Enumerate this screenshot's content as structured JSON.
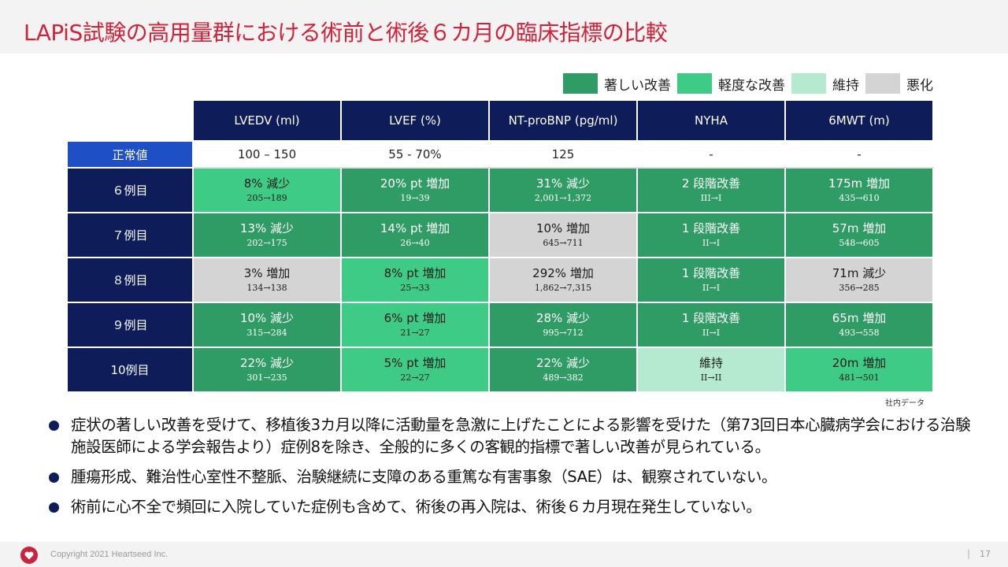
{
  "title": "LAPiS試験の高用量群における術前と術後６カ月の臨床指標の比較",
  "colors": {
    "title": "#d0233a",
    "navy": "#0e1d5a",
    "normal_label": "#1f4fc4",
    "significant": "#2e9c64",
    "mild": "#3ecb86",
    "maintained": "#b5ead0",
    "worsened": "#d4d4d4"
  },
  "legend": [
    {
      "label": "著しい改善",
      "color": "#2e9c64"
    },
    {
      "label": "軽度な改善",
      "color": "#3ecb86"
    },
    {
      "label": "維持",
      "color": "#b5ead0"
    },
    {
      "label": "悪化",
      "color": "#d4d4d4"
    }
  ],
  "table": {
    "columns": [
      "LVEDV (ml)",
      "LVEF (%)",
      "NT-proBNP (pg/ml)",
      "NYHA",
      "6MWT (m)"
    ],
    "normal": {
      "label": "正常値",
      "values": [
        "100 – 150",
        "55 - 70%",
        "125",
        "-",
        "-"
      ]
    },
    "rows": [
      {
        "label": "６例目",
        "cells": [
          {
            "main": "8% 減少",
            "sub": "205→189",
            "status": "mild"
          },
          {
            "main": "20% pt 増加",
            "sub": "19→39",
            "status": "significant"
          },
          {
            "main": "31% 減少",
            "sub": "2,001→1,372",
            "status": "significant"
          },
          {
            "main": "2 段階改善",
            "sub": "III→I",
            "status": "significant"
          },
          {
            "main": "175m 増加",
            "sub": "435→610",
            "status": "significant"
          }
        ]
      },
      {
        "label": "７例目",
        "cells": [
          {
            "main": "13% 減少",
            "sub": "202→175",
            "status": "significant"
          },
          {
            "main": "14% pt 増加",
            "sub": "26→40",
            "status": "significant"
          },
          {
            "main": "10% 増加",
            "sub": "645→711",
            "status": "worsened"
          },
          {
            "main": "1 段階改善",
            "sub": "II→I",
            "status": "significant"
          },
          {
            "main": "57m 増加",
            "sub": "548→605",
            "status": "significant"
          }
        ]
      },
      {
        "label": "８例目",
        "cells": [
          {
            "main": "3% 増加",
            "sub": "134→138",
            "status": "worsened"
          },
          {
            "main": "8% pt 増加",
            "sub": "25→33",
            "status": "mild"
          },
          {
            "main": "292% 増加",
            "sub": "1,862→7,315",
            "status": "worsened"
          },
          {
            "main": "1 段階改善",
            "sub": "II→I",
            "status": "significant"
          },
          {
            "main": "71m 減少",
            "sub": "356→285",
            "status": "worsened"
          }
        ]
      },
      {
        "label": "９例目",
        "cells": [
          {
            "main": "10% 減少",
            "sub": "315→284",
            "status": "significant"
          },
          {
            "main": "6% pt 増加",
            "sub": "21→27",
            "status": "mild"
          },
          {
            "main": "28% 減少",
            "sub": "995→712",
            "status": "significant"
          },
          {
            "main": "1 段階改善",
            "sub": "II→I",
            "status": "significant"
          },
          {
            "main": "65m 増加",
            "sub": "493→558",
            "status": "significant"
          }
        ]
      },
      {
        "label": "10例目",
        "cells": [
          {
            "main": "22% 減少",
            "sub": "301→235",
            "status": "significant"
          },
          {
            "main": "5% pt 増加",
            "sub": "22→27",
            "status": "mild"
          },
          {
            "main": "22% 減少",
            "sub": "489→382",
            "status": "significant"
          },
          {
            "main": "維持",
            "sub": "II→II",
            "status": "maintained"
          },
          {
            "main": "20m 増加",
            "sub": "481→501",
            "status": "mild"
          }
        ]
      }
    ]
  },
  "source_note": "社内データ",
  "bullets": [
    "症状の著しい改善を受けて、移植後3カ月以降に活動量を急激に上げたことによる影響を受けた（第73回日本心臓病学会における治験施設医師による学会報告より）症例8を除き、全般的に多くの客観的指標で著しい改善が見られている。",
    "腫瘍形成、難治性心室性不整脈、治験継続に支障のある重篤な有害事象（SAE）は、観察されていない。",
    "術前に心不全で頻回に入院していた症例も含めて、術後の再入院は、術後６カ月現在発生していない。"
  ],
  "footer": {
    "copyright": "Copyright 2021 Heartseed Inc.",
    "separator": "|",
    "page": "17"
  }
}
